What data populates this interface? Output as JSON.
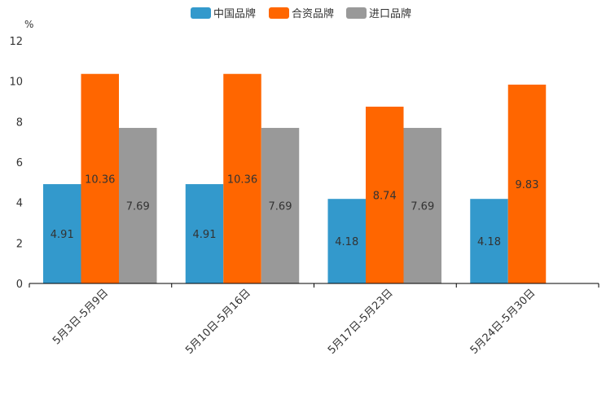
{
  "chart_data": {
    "type": "bar",
    "categories": [
      "5月3日-5月9日",
      "5月10日-5月16日",
      "5月17日-5月23日",
      "5月24日-5月30日"
    ],
    "series": [
      {
        "name": "中国品牌",
        "color": "#3399cc",
        "values": [
          4.91,
          4.91,
          4.18,
          4.18
        ],
        "labels": [
          "4.91",
          "4.91",
          "4.18",
          "4.18"
        ]
      },
      {
        "name": "合资品牌",
        "color": "#ff6600",
        "values": [
          10.36,
          10.36,
          8.74,
          9.83
        ],
        "labels": [
          "10.36",
          "10.36",
          "8.74",
          "9.83"
        ]
      },
      {
        "name": "进口品牌",
        "color": "#999999",
        "values": [
          7.69,
          7.69,
          7.69,
          null
        ],
        "labels": [
          "7.69",
          "7.69",
          "7.69",
          null
        ]
      }
    ],
    "ylabel": "%",
    "ylim": [
      0,
      12
    ],
    "yticks": [
      "0",
      "2",
      "4",
      "6",
      "8",
      "10",
      "12"
    ],
    "legend_position": "top-center",
    "grid": false
  }
}
